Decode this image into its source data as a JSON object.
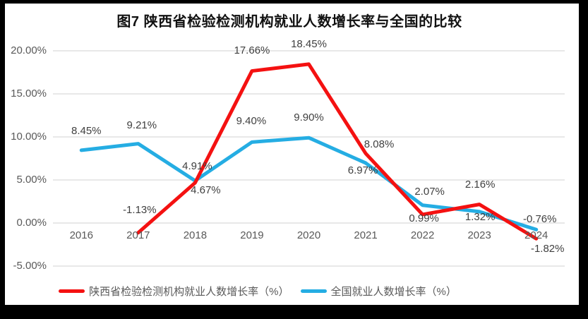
{
  "chart_data": {
    "type": "line",
    "title": "图7 陕西省检验检测机构就业人数增长率与全国的比较",
    "categories": [
      "2016",
      "2017",
      "2018",
      "2019",
      "2020",
      "2021",
      "2022",
      "2023",
      "2024"
    ],
    "series": [
      {
        "name": "全国就业人数增长率（%）",
        "color": "#25ade3",
        "values": [
          8.45,
          9.21,
          4.91,
          9.4,
          9.9,
          6.97,
          2.07,
          1.32,
          -0.76
        ],
        "label_offsets": [
          [
            7,
            -27
          ],
          [
            5,
            -26
          ],
          [
            3,
            -20
          ],
          [
            -1,
            -29
          ],
          [
            0,
            -28
          ],
          [
            -4,
            11
          ],
          [
            10,
            -19
          ],
          [
            1,
            8
          ],
          [
            5,
            -14
          ]
        ]
      },
      {
        "name": "陕西省检验检测机构就业人数增长率（%）",
        "color": "#f41111",
        "values": [
          null,
          -1.13,
          4.67,
          17.66,
          18.45,
          8.08,
          0.99,
          2.16,
          -1.82
        ],
        "label_offsets": [
          null,
          [
            2,
            -32
          ],
          [
            15,
            11
          ],
          [
            0,
            -29
          ],
          [
            0,
            -28
          ],
          [
            19,
            -12
          ],
          [
            2,
            6
          ],
          [
            1,
            -28
          ],
          [
            16,
            15
          ]
        ]
      }
    ],
    "legend_order": [
      "陕西省检验检测机构就业人数增长率（%）",
      "全国就业人数增长率（%）"
    ],
    "yticks": [
      {
        "value": 20,
        "label": "20.00%"
      },
      {
        "value": 15,
        "label": "15.00%"
      },
      {
        "value": 10,
        "label": "10.00%"
      },
      {
        "value": 5,
        "label": "5.00%"
      },
      {
        "value": 0,
        "label": "0.00%"
      },
      {
        "value": -5,
        "label": "-5.00%"
      }
    ],
    "ylim": [
      -5,
      20
    ],
    "grid": true,
    "legend_position": "bottom",
    "data_label_format": "0.00%"
  },
  "colors": {
    "frame": "#000000",
    "background": "#ffffff",
    "gridline": "#d9d9d9",
    "axis_text": "#595959",
    "data_label_text": "#3f3f3f"
  }
}
